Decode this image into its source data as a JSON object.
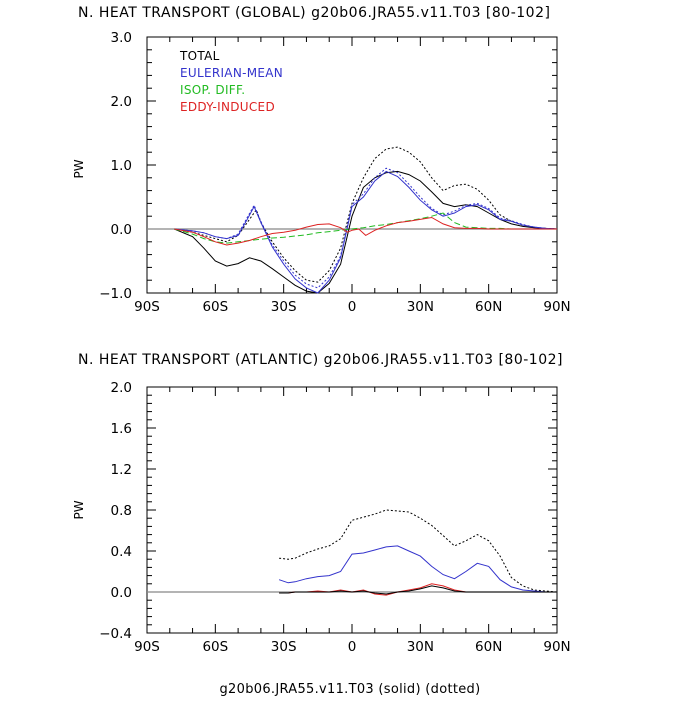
{
  "colors": {
    "total": "#000000",
    "eulerian": "#3333cc",
    "isop": "#22bb22",
    "eddy": "#dd2222",
    "zero_line": "#888888"
  },
  "footer": "g20b06.JRA55.v11.T03 (solid)  (dotted)",
  "chart_data": [
    {
      "type": "line",
      "title": "N. HEAT TRANSPORT (GLOBAL) g20b06.JRA55.v11.T03 [80-102]",
      "xlabel": "",
      "ylabel": "PW",
      "xlim": [
        -90,
        90
      ],
      "ylim": [
        -1.0,
        3.0
      ],
      "x_ticks": [
        -90,
        -60,
        -30,
        0,
        30,
        60,
        90
      ],
      "x_tick_labels": [
        "90S",
        "60S",
        "30S",
        "0",
        "30N",
        "60N",
        "90N"
      ],
      "y_ticks": [
        -1.0,
        0.0,
        1.0,
        2.0,
        3.0
      ],
      "y_tick_labels": [
        "−1.0",
        "0.0",
        "1.0",
        "2.0",
        "3.0"
      ],
      "legend": [
        "TOTAL",
        "EULERIAN-MEAN",
        "ISOP. DIFF.",
        "EDDY-INDUCED"
      ],
      "legend_placement": "top-left",
      "zero_line": true,
      "series": [
        {
          "name": "TOTAL",
          "style": "solid",
          "color_key": "total",
          "x": [
            -78,
            -70,
            -65,
            -60,
            -55,
            -50,
            -45,
            -40,
            -35,
            -30,
            -25,
            -20,
            -15,
            -10,
            -5,
            0,
            5,
            10,
            15,
            20,
            25,
            30,
            35,
            40,
            45,
            50,
            55,
            60,
            65,
            70,
            75,
            80,
            85,
            90
          ],
          "y": [
            0.0,
            -0.12,
            -0.3,
            -0.5,
            -0.58,
            -0.54,
            -0.45,
            -0.5,
            -0.62,
            -0.75,
            -0.88,
            -0.97,
            -1.0,
            -0.85,
            -0.55,
            0.2,
            0.65,
            0.8,
            0.88,
            0.9,
            0.85,
            0.75,
            0.58,
            0.4,
            0.35,
            0.38,
            0.35,
            0.25,
            0.15,
            0.08,
            0.04,
            0.02,
            0.01,
            0.0
          ]
        },
        {
          "name": "TOTAL",
          "style": "dotted",
          "color_key": "total",
          "x": [
            -78,
            -70,
            -65,
            -60,
            -55,
            -50,
            -45,
            -42,
            -40,
            -35,
            -30,
            -25,
            -20,
            -15,
            -10,
            -5,
            0,
            5,
            10,
            15,
            20,
            25,
            30,
            35,
            40,
            45,
            50,
            55,
            60,
            65,
            70,
            75,
            80,
            85,
            90
          ],
          "y": [
            0.0,
            -0.05,
            -0.1,
            -0.15,
            -0.2,
            -0.1,
            0.15,
            0.3,
            0.1,
            -0.2,
            -0.45,
            -0.65,
            -0.8,
            -0.83,
            -0.65,
            -0.3,
            0.4,
            0.8,
            1.1,
            1.25,
            1.28,
            1.2,
            1.05,
            0.8,
            0.6,
            0.68,
            0.7,
            0.62,
            0.45,
            0.22,
            0.12,
            0.06,
            0.03,
            0.01,
            0.0
          ]
        },
        {
          "name": "EULERIAN-MEAN",
          "style": "solid",
          "color_key": "eulerian",
          "x": [
            -78,
            -70,
            -65,
            -60,
            -55,
            -50,
            -46,
            -43,
            -40,
            -35,
            -30,
            -25,
            -20,
            -15,
            -10,
            -5,
            0,
            5,
            10,
            15,
            20,
            25,
            30,
            35,
            40,
            45,
            50,
            55,
            60,
            65,
            70,
            75,
            80,
            85,
            90
          ],
          "y": [
            0.0,
            -0.03,
            -0.06,
            -0.12,
            -0.15,
            -0.1,
            0.15,
            0.35,
            0.1,
            -0.28,
            -0.55,
            -0.78,
            -0.92,
            -1.0,
            -0.8,
            -0.45,
            0.35,
            0.5,
            0.75,
            0.9,
            0.82,
            0.65,
            0.45,
            0.3,
            0.2,
            0.25,
            0.35,
            0.38,
            0.3,
            0.15,
            0.12,
            0.06,
            0.03,
            0.01,
            0.0
          ]
        },
        {
          "name": "EULERIAN-MEAN",
          "style": "dotted",
          "color_key": "eulerian",
          "x": [
            -78,
            -70,
            -65,
            -60,
            -55,
            -50,
            -46,
            -43,
            -40,
            -35,
            -30,
            -25,
            -20,
            -15,
            -10,
            -5,
            0,
            5,
            10,
            15,
            20,
            25,
            30,
            35,
            40,
            45,
            50,
            55,
            60,
            65,
            70,
            75,
            80,
            85,
            90
          ],
          "y": [
            0.0,
            -0.03,
            -0.06,
            -0.12,
            -0.15,
            -0.08,
            0.18,
            0.37,
            0.12,
            -0.25,
            -0.5,
            -0.72,
            -0.86,
            -0.92,
            -0.75,
            -0.42,
            0.38,
            0.55,
            0.8,
            0.95,
            0.88,
            0.7,
            0.5,
            0.32,
            0.22,
            0.28,
            0.37,
            0.4,
            0.32,
            0.17,
            0.13,
            0.07,
            0.03,
            0.01,
            0.0
          ]
        },
        {
          "name": "ISOP. DIFF.",
          "style": "dashed",
          "color_key": "isop",
          "x": [
            -78,
            -70,
            -65,
            -60,
            -55,
            -50,
            -45,
            -40,
            -35,
            -30,
            -25,
            -20,
            -15,
            -10,
            -5,
            0,
            5,
            10,
            15,
            20,
            25,
            30,
            35,
            40,
            45,
            50,
            55,
            60,
            65,
            70,
            75,
            80,
            85,
            90
          ],
          "y": [
            0.0,
            -0.08,
            -0.15,
            -0.2,
            -0.22,
            -0.2,
            -0.18,
            -0.16,
            -0.14,
            -0.13,
            -0.11,
            -0.09,
            -0.06,
            -0.04,
            -0.02,
            0.0,
            0.02,
            0.05,
            0.07,
            0.1,
            0.13,
            0.16,
            0.2,
            0.25,
            0.1,
            0.03,
            0.02,
            0.01,
            0.01,
            0.0,
            0.0,
            0.0,
            0.0,
            0.0
          ]
        },
        {
          "name": "EDDY-INDUCED",
          "style": "solid",
          "color_key": "eddy",
          "x": [
            -78,
            -70,
            -65,
            -60,
            -55,
            -50,
            -45,
            -40,
            -35,
            -30,
            -25,
            -20,
            -15,
            -10,
            -5,
            -2,
            0,
            3,
            6,
            10,
            15,
            20,
            25,
            30,
            35,
            40,
            45,
            50,
            55,
            60,
            65,
            70,
            75,
            80,
            85,
            90
          ],
          "y": [
            0.0,
            -0.05,
            -0.12,
            -0.2,
            -0.25,
            -0.22,
            -0.18,
            -0.12,
            -0.07,
            -0.05,
            -0.02,
            0.03,
            0.07,
            0.08,
            0.02,
            -0.05,
            -0.02,
            0.0,
            -0.1,
            -0.02,
            0.05,
            0.1,
            0.12,
            0.15,
            0.18,
            0.08,
            0.02,
            0.01,
            0.01,
            0.0,
            0.0,
            0.0,
            0.0,
            0.0,
            0.0,
            0.0
          ]
        }
      ]
    },
    {
      "type": "line",
      "title": "N. HEAT TRANSPORT (ATLANTIC) g20b06.JRA55.v11.T03 [80-102]",
      "xlabel": "",
      "ylabel": "PW",
      "xlim": [
        -90,
        90
      ],
      "ylim": [
        -0.4,
        2.0
      ],
      "x_ticks": [
        -90,
        -60,
        -30,
        0,
        30,
        60,
        90
      ],
      "x_tick_labels": [
        "90S",
        "60S",
        "30S",
        "0",
        "30N",
        "60N",
        "90N"
      ],
      "y_ticks": [
        -0.4,
        0.0,
        0.4,
        0.8,
        1.2,
        1.6,
        2.0
      ],
      "y_tick_labels": [
        "−0.4",
        "0.0",
        "0.4",
        "0.8",
        "1.2",
        "1.6",
        "2.0"
      ],
      "zero_line": true,
      "series": [
        {
          "name": "TOTAL",
          "style": "dotted",
          "color_key": "total",
          "x": [
            -32,
            -28,
            -25,
            -20,
            -15,
            -10,
            -5,
            0,
            5,
            10,
            15,
            20,
            25,
            30,
            35,
            40,
            45,
            50,
            55,
            60,
            65,
            70,
            75,
            80,
            85,
            90
          ],
          "y": [
            0.33,
            0.32,
            0.33,
            0.38,
            0.42,
            0.45,
            0.52,
            0.7,
            0.73,
            0.76,
            0.8,
            0.79,
            0.78,
            0.72,
            0.65,
            0.55,
            0.45,
            0.5,
            0.56,
            0.5,
            0.35,
            0.14,
            0.06,
            0.02,
            0.01,
            0.0
          ]
        },
        {
          "name": "EULERIAN-MEAN",
          "style": "solid",
          "color_key": "eulerian",
          "x": [
            -32,
            -28,
            -25,
            -20,
            -15,
            -10,
            -5,
            0,
            5,
            10,
            15,
            20,
            25,
            30,
            35,
            40,
            45,
            50,
            55,
            60,
            65,
            70,
            75,
            80,
            85,
            90
          ],
          "y": [
            0.12,
            0.09,
            0.1,
            0.13,
            0.15,
            0.16,
            0.2,
            0.37,
            0.38,
            0.41,
            0.44,
            0.45,
            0.4,
            0.35,
            0.25,
            0.17,
            0.13,
            0.2,
            0.28,
            0.25,
            0.12,
            0.05,
            0.02,
            0.01,
            0.0,
            0.0
          ]
        },
        {
          "name": "EDDY-INDUCED",
          "style": "solid",
          "color_key": "eddy",
          "x": [
            -32,
            -28,
            -25,
            -20,
            -15,
            -10,
            -5,
            0,
            5,
            10,
            15,
            20,
            25,
            30,
            35,
            40,
            45,
            50,
            55,
            60,
            65,
            70,
            75,
            80,
            85,
            90
          ],
          "y": [
            -0.01,
            -0.01,
            0.0,
            0.0,
            0.01,
            0.0,
            0.02,
            0.0,
            0.02,
            -0.02,
            -0.03,
            0.0,
            0.02,
            0.04,
            0.08,
            0.06,
            0.02,
            0.0,
            0.0,
            0.0,
            0.0,
            0.0,
            0.0,
            0.0,
            0.0,
            0.0
          ]
        },
        {
          "name": "TOTAL",
          "style": "solid",
          "color_key": "total",
          "x": [
            -32,
            -28,
            -25,
            -20,
            -15,
            -10,
            -5,
            0,
            5,
            10,
            15,
            20,
            25,
            30,
            35,
            40,
            45,
            50,
            55,
            60,
            65,
            70,
            75,
            80,
            85,
            90
          ],
          "y": [
            -0.01,
            -0.01,
            0.0,
            0.0,
            0.0,
            0.0,
            0.01,
            0.0,
            0.01,
            -0.01,
            -0.02,
            0.0,
            0.01,
            0.03,
            0.06,
            0.04,
            0.01,
            0.0,
            0.0,
            0.0,
            0.0,
            0.0,
            0.0,
            0.0,
            0.0,
            0.0
          ]
        }
      ]
    }
  ]
}
